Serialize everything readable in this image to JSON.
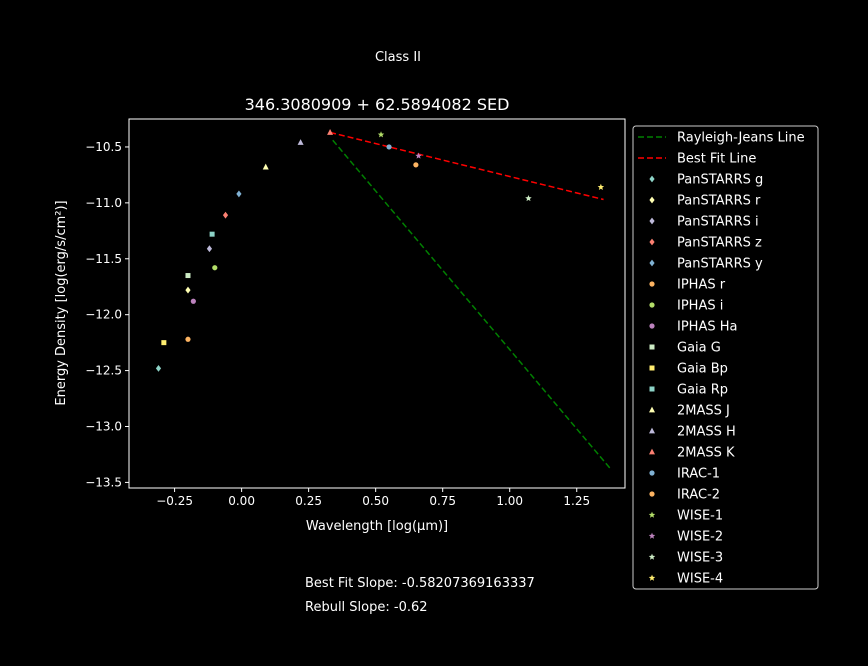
{
  "figure": {
    "suptitle": "Class II",
    "footer": {
      "best_fit_label": "Best Fit Slope:",
      "best_fit_value": "-0.58207369163337",
      "rebull_label": "Rebull Slope:",
      "rebull_value": "-0.62"
    }
  },
  "colors": {
    "background": "#000000",
    "foreground": "#ffffff",
    "rayleigh_jeans": "#008000",
    "best_fit": "#ff0000"
  },
  "chart_data": {
    "type": "scatter",
    "title": "346.3080909 + 62.5894082 SED",
    "xlabel": "Wavelength [log(μm)]",
    "ylabel": "Energy Density [log(erg/s/cm²)]",
    "xlim": [
      -0.42,
      1.43
    ],
    "ylim": [
      -13.55,
      -10.25
    ],
    "xticks": [
      -0.25,
      0.0,
      0.25,
      0.5,
      0.75,
      1.0,
      1.25
    ],
    "xtick_labels": [
      "−0.25",
      "0.00",
      "0.25",
      "0.50",
      "0.75",
      "1.00",
      "1.25"
    ],
    "yticks": [
      -10.5,
      -11.0,
      -11.5,
      -12.0,
      -12.5,
      -13.0,
      -13.5
    ],
    "ytick_labels": [
      "−10.5",
      "−11.0",
      "−11.5",
      "−12.0",
      "−12.5",
      "−13.0",
      "−13.5"
    ],
    "grid": false,
    "legend_position": "outside-right",
    "lines": [
      {
        "name": "Rayleigh-Jeans Line",
        "color": "#008000",
        "style": "dashed",
        "x": [
          0.34,
          1.38
        ],
        "y": [
          -10.44,
          -13.39
        ]
      },
      {
        "name": "Best Fit Line",
        "color": "#ff0000",
        "style": "dashed",
        "x": [
          0.33,
          1.35
        ],
        "y": [
          -10.37,
          -10.97
        ]
      }
    ],
    "series": [
      {
        "name": "PanSTARRS g",
        "marker": "diamond",
        "color": "#8dd3c7",
        "x": [
          -0.31
        ],
        "y": [
          -12.48
        ]
      },
      {
        "name": "PanSTARRS r",
        "marker": "diamond",
        "color": "#ffffb3",
        "x": [
          -0.2
        ],
        "y": [
          -11.78
        ]
      },
      {
        "name": "PanSTARRS i",
        "marker": "diamond",
        "color": "#bebada",
        "x": [
          -0.12
        ],
        "y": [
          -11.41
        ]
      },
      {
        "name": "PanSTARRS z",
        "marker": "diamond",
        "color": "#fb8072",
        "x": [
          -0.06
        ],
        "y": [
          -11.11
        ]
      },
      {
        "name": "PanSTARRS y",
        "marker": "diamond",
        "color": "#80b1d3",
        "x": [
          -0.01
        ],
        "y": [
          -10.92
        ]
      },
      {
        "name": "IPHAS r",
        "marker": "circle",
        "color": "#fdb462",
        "x": [
          -0.2
        ],
        "y": [
          -12.22
        ]
      },
      {
        "name": "IPHAS i",
        "marker": "circle",
        "color": "#b3de69",
        "x": [
          -0.1
        ],
        "y": [
          -11.58
        ]
      },
      {
        "name": "IPHAS Ha",
        "marker": "circle",
        "color": "#bc82bd",
        "x": [
          -0.18
        ],
        "y": [
          -11.88
        ]
      },
      {
        "name": "Gaia G",
        "marker": "square",
        "color": "#ccebc4",
        "x": [
          -0.2
        ],
        "y": [
          -11.65
        ]
      },
      {
        "name": "Gaia Bp",
        "marker": "square",
        "color": "#ffed6f",
        "x": [
          -0.29
        ],
        "y": [
          -12.25
        ]
      },
      {
        "name": "Gaia Rp",
        "marker": "square",
        "color": "#8dd3c7",
        "x": [
          -0.11
        ],
        "y": [
          -11.28
        ]
      },
      {
        "name": "2MASS J",
        "marker": "triangle",
        "color": "#ffffb3",
        "x": [
          0.09
        ],
        "y": [
          -10.68
        ]
      },
      {
        "name": "2MASS H",
        "marker": "triangle",
        "color": "#bebada",
        "x": [
          0.22
        ],
        "y": [
          -10.46
        ]
      },
      {
        "name": "2MASS K",
        "marker": "triangle",
        "color": "#fb8072",
        "x": [
          0.33
        ],
        "y": [
          -10.37
        ]
      },
      {
        "name": "IRAC-1",
        "marker": "circle",
        "color": "#80b1d3",
        "x": [
          0.55
        ],
        "y": [
          -10.5
        ]
      },
      {
        "name": "IRAC-2",
        "marker": "circle",
        "color": "#fdb462",
        "x": [
          0.65
        ],
        "y": [
          -10.66
        ]
      },
      {
        "name": "WISE-1",
        "marker": "star",
        "color": "#b3de69",
        "x": [
          0.52
        ],
        "y": [
          -10.39
        ]
      },
      {
        "name": "WISE-2",
        "marker": "star",
        "color": "#bc82bd",
        "x": [
          0.66
        ],
        "y": [
          -10.58
        ]
      },
      {
        "name": "WISE-3",
        "marker": "star",
        "color": "#ccebc4",
        "x": [
          1.07
        ],
        "y": [
          -10.96
        ]
      },
      {
        "name": "WISE-4",
        "marker": "star",
        "color": "#ffed6f",
        "x": [
          1.34
        ],
        "y": [
          -10.86
        ]
      }
    ]
  }
}
